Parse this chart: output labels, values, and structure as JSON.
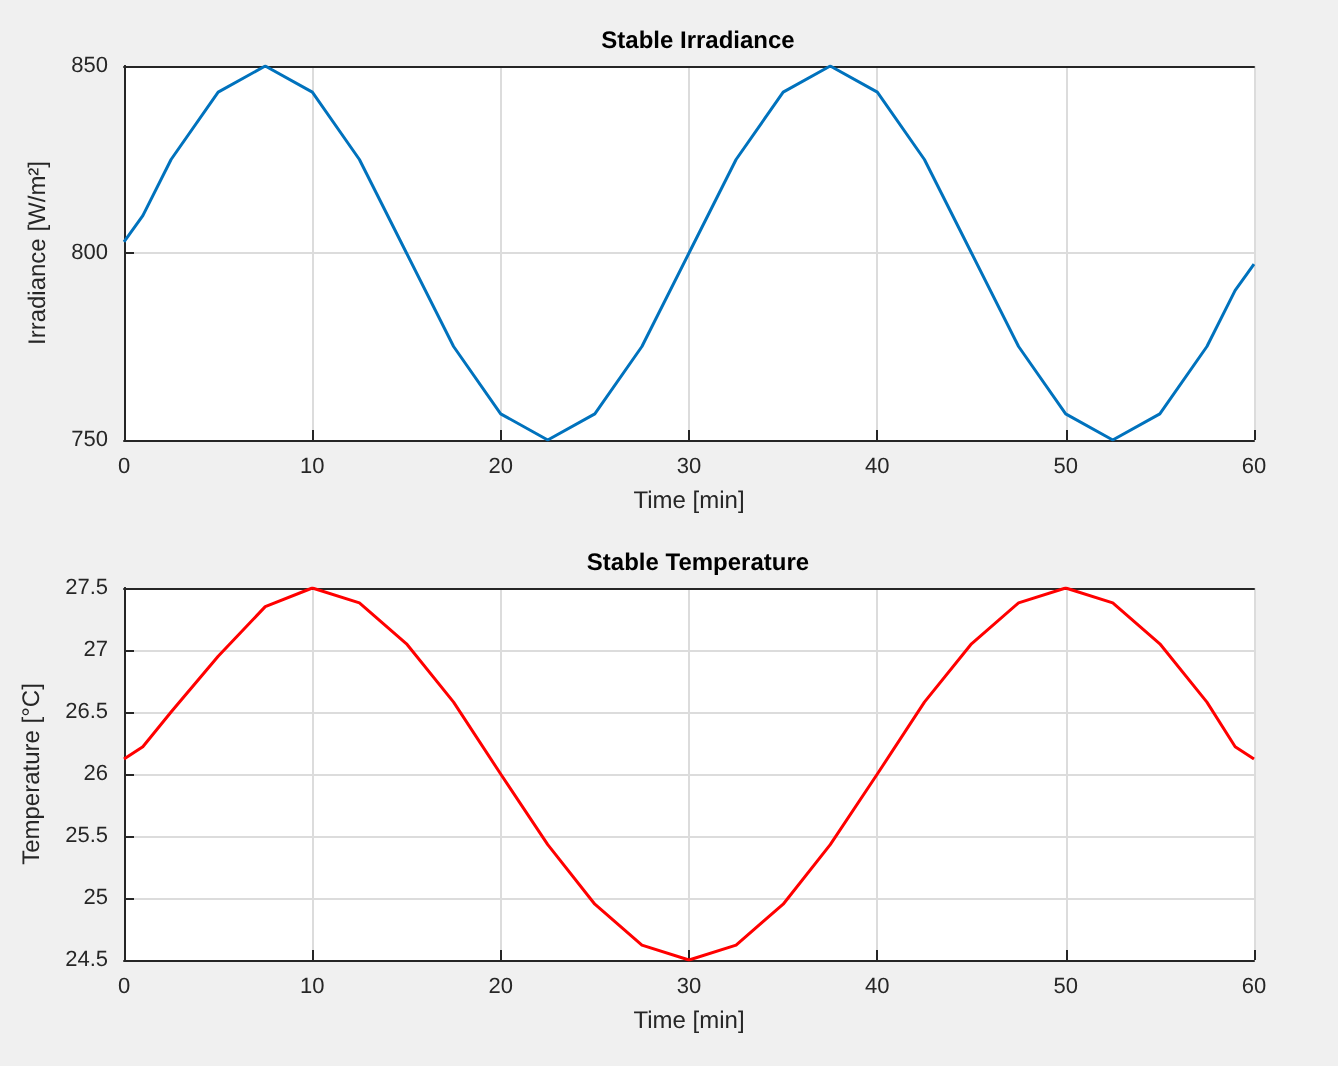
{
  "chart_data": [
    {
      "type": "line",
      "title": "Stable Irradiance",
      "xlabel": "Time [min]",
      "ylabel": "Irradiance [W/m²]",
      "x": [
        0,
        1,
        2.5,
        5,
        7.5,
        10,
        12.5,
        15,
        17.5,
        20,
        22.5,
        25,
        27.5,
        30,
        32.5,
        35,
        37.5,
        40,
        42.5,
        45,
        47.5,
        50,
        52.5,
        55,
        57.5,
        59,
        60
      ],
      "series": [
        {
          "color": "#0072bd",
          "values": [
            803,
            810,
            825,
            843,
            850,
            843,
            825,
            800,
            775,
            757,
            750,
            757,
            775,
            800,
            825,
            843,
            850,
            843,
            825,
            800,
            775,
            757,
            750,
            757,
            775,
            790,
            797
          ]
        }
      ],
      "xlim": [
        0,
        60
      ],
      "xticks": [
        0,
        10,
        20,
        30,
        40,
        50,
        60
      ],
      "ylim": [
        750,
        850
      ],
      "yticks": [
        750,
        800,
        850
      ],
      "grid": true
    },
    {
      "type": "line",
      "title": "Stable Temperature",
      "xlabel": "Time [min]",
      "ylabel": "Temperature [°C]",
      "x": [
        0,
        1,
        2.5,
        5,
        7.5,
        10,
        12.5,
        15,
        17.5,
        20,
        22.5,
        25,
        27.5,
        30,
        32.5,
        35,
        37.5,
        40,
        42.5,
        45,
        47.5,
        50,
        52.5,
        55,
        57.5,
        59,
        60
      ],
      "series": [
        {
          "color": "#ff0000",
          "values": [
            26.12,
            26.22,
            26.5,
            26.95,
            27.35,
            27.5,
            27.38,
            27.05,
            26.58,
            26,
            25.43,
            24.95,
            24.62,
            24.5,
            24.62,
            24.95,
            25.43,
            26,
            26.58,
            27.05,
            27.38,
            27.5,
            27.38,
            27.05,
            26.58,
            26.22,
            26.12
          ]
        }
      ],
      "xlim": [
        0,
        60
      ],
      "xticks": [
        0,
        10,
        20,
        30,
        40,
        50,
        60
      ],
      "ylim": [
        24.5,
        27.5
      ],
      "yticks": [
        24.5,
        25,
        25.5,
        26,
        26.5,
        27,
        27.5
      ],
      "grid": true
    }
  ]
}
